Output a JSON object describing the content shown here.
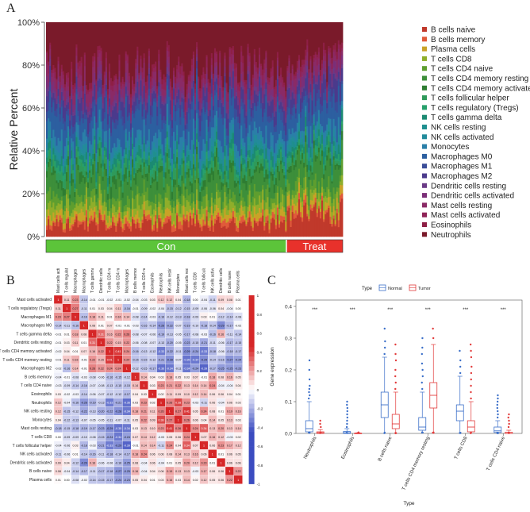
{
  "panels": {
    "a": {
      "label": "A"
    },
    "b": {
      "label": "B"
    },
    "c": {
      "label": "C"
    }
  },
  "chart_data": [
    {
      "id": "A",
      "type": "bar",
      "stacked": true,
      "ylabel": "Relative Percent",
      "yticks": [
        "0%",
        "20%",
        "40%",
        "60%",
        "80%",
        "100%"
      ],
      "groups": [
        {
          "name": "Con",
          "fraction": 0.81,
          "color": "#5cc43a"
        },
        {
          "name": "Treat",
          "fraction": 0.19,
          "color": "#e8312b"
        }
      ],
      "n_samples": 180,
      "legend_position": "right",
      "cell_types": [
        {
          "name": "B cells naive",
          "color": "#c0392b",
          "con": 6,
          "treat": 10
        },
        {
          "name": "B cells memory",
          "color": "#e05a3a",
          "con": 2,
          "treat": 2
        },
        {
          "name": "Plasma cells",
          "color": "#c9a227",
          "con": 3,
          "treat": 3
        },
        {
          "name": "T cells CD8",
          "color": "#8fae2a",
          "con": 4,
          "treat": 3
        },
        {
          "name": "T cells CD4 naive",
          "color": "#5e9e2f",
          "con": 4,
          "treat": 4
        },
        {
          "name": "T cells CD4 memory resting",
          "color": "#3d8f3a",
          "con": 8,
          "treat": 9
        },
        {
          "name": "T cells CD4 memory activated",
          "color": "#2e7d32",
          "con": 3,
          "treat": 2
        },
        {
          "name": "T cells follicular helper",
          "color": "#2f9a5a",
          "con": 3,
          "treat": 2
        },
        {
          "name": "T cells regulatory (Tregs)",
          "color": "#27a06b",
          "con": 2,
          "treat": 2
        },
        {
          "name": "T cells gamma delta",
          "color": "#1b8a72",
          "con": 3,
          "treat": 3
        },
        {
          "name": "NK cells resting",
          "color": "#1f8f8f",
          "con": 2,
          "treat": 2
        },
        {
          "name": "NK cells activated",
          "color": "#228b9b",
          "con": 3,
          "treat": 2
        },
        {
          "name": "Monocytes",
          "color": "#2a7fa8",
          "con": 4,
          "treat": 3
        },
        {
          "name": "Macrophages M0",
          "color": "#2c5fa0",
          "con": 10,
          "treat": 9
        },
        {
          "name": "Macrophages M1",
          "color": "#3a4d99",
          "con": 3,
          "treat": 3
        },
        {
          "name": "Macrophages M2",
          "color": "#4b3a8c",
          "con": 5,
          "treat": 6
        },
        {
          "name": "Dendritic cells resting",
          "color": "#6a3a86",
          "con": 2,
          "treat": 2
        },
        {
          "name": "Dendritic cells activated",
          "color": "#7b2f78",
          "con": 3,
          "treat": 3
        },
        {
          "name": "Mast cells resting",
          "color": "#8a2a66",
          "con": 4,
          "treat": 4
        },
        {
          "name": "Mast cells activated",
          "color": "#8f2357",
          "con": 3,
          "treat": 2
        },
        {
          "name": "Eosinophils",
          "color": "#8e1f45",
          "con": 2,
          "treat": 2
        },
        {
          "name": "Neutrophils",
          "color": "#7a1a2a",
          "con": 22,
          "treat": 18
        }
      ]
    },
    {
      "id": "B",
      "type": "heatmap",
      "title": "",
      "color_scale": {
        "min": -1,
        "mid": 0,
        "max": 1,
        "low_color": "#3b4cc0",
        "mid_color": "#ffffff",
        "high_color": "#d62728",
        "ticks": [
          "1",
          "0.8",
          "0.6",
          "0.4",
          "0.2",
          "0",
          "-0.2",
          "-0.4",
          "-0.6",
          "-0.8",
          "-1"
        ]
      },
      "rows": [
        "Mast cells activated",
        "T cells regulatory (Tregs)",
        "Macrophages M1",
        "Macrophages M0",
        "T cells gamma delta",
        "Dendritic cells resting",
        "T cells CD4 memory activated",
        "T cells CD4 memory resting",
        "Macrophages M2",
        "B cells memory",
        "T cells CD4 naive",
        "Eosinophils",
        "Neutrophils",
        "NK cells resting",
        "Monocytes",
        "Mast cells resting",
        "T cells CD8",
        "T cells follicular helper",
        "NK cells activated",
        "Dendritic cells activated",
        "B cells naive",
        "Plasma cells"
      ],
      "cols": [
        "Mast cells activated",
        "T cells regulatory (Tregs)",
        "Macrophages M1",
        "Macrophages M0",
        "T cells gamma delta",
        "Dendritic cells resting",
        "T cells CD4 memory activated",
        "T cells CD4 memory resting",
        "Macrophages M2",
        "B cells memory",
        "T cells CD4 naive",
        "Eosinophils",
        "Neutrophils",
        "NK cells resting",
        "Monocytes",
        "Mast cells resting",
        "T cells CD8",
        "T cells follicular helper",
        "NK cells activated",
        "Dendritic cells activated",
        "B cells naive",
        "Plasma cells"
      ],
      "values": [
        [
          1,
          0.11,
          0.23,
          -0.14,
          -0.01,
          -0.01,
          -0.02,
          -0.01,
          -0.02,
          -0.04,
          -0.03,
          0.03,
          0.12,
          0.12,
          0.04,
          -0.18,
          0,
          -0.04,
          -0.11,
          0.09,
          0.08,
          0.01
        ],
        [
          0.11,
          1,
          0.27,
          -0.11,
          0.01,
          0.03,
          0.04,
          0.11,
          -0.16,
          -0.01,
          -0.09,
          -0.02,
          -0.04,
          -0.15,
          -0.12,
          -0.15,
          -0.09,
          -0.06,
          -0.06,
          0.04,
          -0.04,
          0
        ],
        [
          0.23,
          0.27,
          1,
          -0.16,
          0.18,
          0.11,
          0.01,
          0.16,
          0.14,
          -0.08,
          -0.14,
          -0.03,
          -0.16,
          -0.12,
          -0.13,
          -0.18,
          -0.09,
          0.03,
          0.01,
          -0.12,
          -0.14,
          -0.08
        ],
        [
          -0.14,
          -0.11,
          -0.16,
          1,
          0.08,
          0.01,
          0.07,
          -0.01,
          -0.01,
          -0.03,
          -0.16,
          -0.14,
          -0.26,
          -0.22,
          -0.07,
          -0.19,
          -0.1,
          -0.18,
          -0.14,
          -0.29,
          -0.17,
          -0.02
        ],
        [
          -0.01,
          0.01,
          0.18,
          0.08,
          1,
          0.31,
          0.16,
          0.22,
          0.26,
          -0.08,
          -0.07,
          -0.06,
          -0.19,
          -0.13,
          -0.05,
          -0.17,
          -0.08,
          -0.03,
          -0.16,
          0.16,
          -0.11,
          -0.14
        ],
        [
          -0.01,
          0.03,
          0.11,
          0.01,
          0.31,
          1,
          0.22,
          0.15,
          0.22,
          -0.06,
          -0.08,
          -0.07,
          -0.13,
          -0.2,
          -0.05,
          -0.23,
          -0.15,
          -0.21,
          -0.11,
          -0.06,
          -0.17,
          -0.15
        ],
        [
          -0.02,
          0.04,
          0.01,
          0.07,
          0.16,
          0.22,
          1,
          0.41,
          0.24,
          -0.16,
          -0.13,
          -0.12,
          -0.33,
          -0.22,
          -0.11,
          -0.29,
          -0.24,
          -0.33,
          -0.18,
          -0.06,
          -0.18,
          -0.17
        ],
        [
          -0.01,
          0.11,
          0.16,
          -0.01,
          0.22,
          0.15,
          0.41,
          1,
          0.24,
          -0.15,
          -0.15,
          -0.12,
          -0.21,
          -0.28,
          -0.07,
          -0.35,
          -0.34,
          -0.29,
          -0.14,
          -0.16,
          -0.27,
          -0.24
        ],
        [
          -0.02,
          -0.16,
          0.14,
          -0.01,
          0.26,
          0.22,
          0.24,
          0.24,
          1,
          -0.12,
          -0.15,
          -0.17,
          -0.36,
          -0.34,
          -0.11,
          -0.34,
          -0.24,
          -0.39,
          -0.17,
          -0.25,
          -0.25,
          -0.23
        ],
        [
          -0.04,
          -0.01,
          -0.08,
          -0.03,
          -0.08,
          -0.06,
          -0.16,
          -0.15,
          -0.12,
          1,
          0.14,
          0.04,
          0.03,
          0.18,
          0.05,
          0.03,
          0.07,
          -0.01,
          0.18,
          0.08,
          0.16,
          0.05
        ],
        [
          -0.03,
          -0.09,
          -0.14,
          -0.16,
          -0.07,
          -0.08,
          -0.13,
          -0.15,
          -0.15,
          0.14,
          1,
          0.03,
          0.23,
          0.21,
          0.22,
          0.13,
          0.14,
          0.14,
          0.24,
          -0.04,
          -0.04,
          0.04
        ],
        [
          0.03,
          -0.02,
          -0.03,
          -0.14,
          -0.06,
          -0.07,
          -0.12,
          -0.12,
          -0.17,
          0.04,
          0.03,
          1,
          0.02,
          0.11,
          0.09,
          0.1,
          0.12,
          0.14,
          0.06,
          0.06,
          0.04,
          0.01
        ],
        [
          0.12,
          -0.04,
          -0.16,
          -0.26,
          -0.19,
          -0.13,
          -0.33,
          -0.21,
          -0.36,
          0.03,
          0.23,
          0.02,
          1,
          0.26,
          0.38,
          0.23,
          -0.03,
          -0.11,
          0.06,
          -0.04,
          0.06,
          0.03
        ],
        [
          0.12,
          -0.15,
          -0.12,
          -0.22,
          -0.13,
          -0.2,
          -0.22,
          -0.28,
          -0.34,
          0.18,
          0.21,
          0.11,
          0.26,
          1,
          0.27,
          0.41,
          0.05,
          0.24,
          0.08,
          0.01,
          0.19,
          0.16
        ],
        [
          0.04,
          -0.12,
          -0.13,
          -0.07,
          -0.05,
          -0.05,
          -0.11,
          -0.07,
          -0.11,
          0.05,
          0.22,
          0.09,
          0.38,
          0.27,
          1,
          0.26,
          0.06,
          0.04,
          0.14,
          0.05,
          0.13,
          0.03
        ],
        [
          -0.18,
          -0.15,
          -0.18,
          -0.19,
          -0.17,
          -0.23,
          -0.29,
          -0.35,
          -0.34,
          0.03,
          0.13,
          0.1,
          0.23,
          0.41,
          0.26,
          1,
          0.24,
          0.34,
          0.13,
          0.2,
          0.13,
          0.14
        ],
        [
          0,
          -0.09,
          -0.09,
          -0.1,
          -0.08,
          -0.15,
          -0.24,
          -0.34,
          -0.24,
          0.07,
          0.14,
          0.12,
          -0.03,
          0.05,
          0.06,
          0.24,
          1,
          0.07,
          0.16,
          0.12,
          -0.03,
          0.02
        ],
        [
          -0.04,
          -0.06,
          0.03,
          -0.18,
          -0.03,
          -0.21,
          -0.33,
          -0.29,
          -0.39,
          -0.01,
          0.14,
          0.14,
          -0.11,
          0.24,
          0.04,
          0.34,
          0.07,
          1,
          0.06,
          0.23,
          0.17,
          0.12
        ],
        [
          -0.11,
          -0.06,
          0.01,
          -0.14,
          -0.16,
          -0.11,
          -0.18,
          -0.14,
          -0.17,
          0.18,
          0.24,
          0.06,
          0.06,
          0.08,
          0.14,
          0.13,
          0.16,
          0.06,
          1,
          0.01,
          0.06,
          0.05
        ],
        [
          0.09,
          0.04,
          -0.12,
          -0.29,
          0.16,
          -0.06,
          -0.06,
          -0.16,
          -0.25,
          0.08,
          -0.04,
          0.06,
          -0.04,
          0.01,
          0.05,
          0.2,
          0.12,
          0.23,
          0.01,
          1,
          0.06,
          0.06
        ],
        [
          0.08,
          -0.04,
          -0.14,
          -0.17,
          -0.11,
          -0.17,
          -0.18,
          -0.27,
          -0.25,
          0.16,
          -0.04,
          0.04,
          0.06,
          0.19,
          0.13,
          0.13,
          -0.03,
          0.17,
          0.06,
          0.06,
          1,
          0.22
        ],
        [
          0.01,
          0,
          -0.08,
          -0.02,
          -0.14,
          -0.15,
          -0.17,
          -0.24,
          -0.23,
          0.05,
          0.04,
          0.01,
          0.03,
          0.16,
          0.03,
          0.14,
          0.02,
          0.12,
          0.05,
          0.06,
          0.22,
          1
        ]
      ]
    },
    {
      "id": "C",
      "type": "boxplot",
      "ylabel": "Gene expression",
      "xlabel": "Type",
      "ylim": [
        0,
        0.42
      ],
      "yticks": [
        0,
        0.1,
        0.2,
        0.3,
        0.4
      ],
      "legend": {
        "title": "Type",
        "position": "top",
        "entries": [
          {
            "name": "Normal",
            "color": "#3b6fc9"
          },
          {
            "name": "Tumor",
            "color": "#e23b3b"
          }
        ]
      },
      "significance": "***",
      "categories": [
        {
          "name": "Neutrophils",
          "normal": {
            "whislo": 0,
            "q1": 0.005,
            "med": 0.015,
            "q3": 0.04,
            "whishi": 0.1,
            "outliers": [
              0.11,
              0.12,
              0.13,
              0.14,
              0.15,
              0.17,
              0.2,
              0.23
            ]
          },
          "tumor": {
            "whislo": 0,
            "q1": 0.0,
            "med": 0.002,
            "q3": 0.005,
            "whishi": 0.012,
            "outliers": [
              0.02,
              0.03,
              0.04
            ]
          }
        },
        {
          "name": "Eosinophils",
          "normal": {
            "whislo": 0,
            "q1": 0.0,
            "med": 0.002,
            "q3": 0.006,
            "whishi": 0.015,
            "outliers": [
              0.02,
              0.03,
              0.04,
              0.05,
              0.06,
              0.07,
              0.08,
              0.09,
              0.1
            ]
          },
          "tumor": {
            "whislo": 0,
            "q1": 0.0,
            "med": 0.0,
            "q3": 0.001,
            "whishi": 0.002,
            "outliers": []
          }
        },
        {
          "name": "B cells naive",
          "normal": {
            "whislo": 0,
            "q1": 0.05,
            "med": 0.09,
            "q3": 0.13,
            "whishi": 0.24,
            "outliers": [
              0.25,
              0.27,
              0.29,
              0.33
            ]
          },
          "tumor": {
            "whislo": 0,
            "q1": 0.015,
            "med": 0.03,
            "q3": 0.06,
            "whishi": 0.13,
            "outliers": [
              0.14,
              0.16,
              0.18,
              0.2,
              0.23,
              0.25,
              0.28
            ]
          }
        },
        {
          "name": "T cells CD4 memory resting",
          "normal": {
            "whislo": 0,
            "q1": 0.01,
            "med": 0.02,
            "q3": 0.05,
            "whishi": 0.13,
            "outliers": [
              0.14,
              0.16,
              0.18,
              0.2,
              0.22,
              0.25,
              0.27,
              0.3
            ]
          },
          "tumor": {
            "whislo": 0,
            "q1": 0.08,
            "med": 0.12,
            "q3": 0.16,
            "whishi": 0.28,
            "outliers": [
              0.3,
              0.33
            ]
          }
        },
        {
          "name": "T cells CD8",
          "normal": {
            "whislo": 0,
            "q1": 0.04,
            "med": 0.07,
            "q3": 0.09,
            "whishi": 0.18,
            "outliers": [
              0.19,
              0.21,
              0.23,
              0.26
            ]
          },
          "tumor": {
            "whislo": 0,
            "q1": 0.005,
            "med": 0.02,
            "q3": 0.04,
            "whishi": 0.1,
            "outliers": [
              0.11,
              0.13,
              0.15,
              0.17,
              0.19,
              0.21,
              0.24,
              0.26,
              0.28
            ]
          }
        },
        {
          "name": "T cells CD4 naive",
          "normal": {
            "whislo": 0,
            "q1": 0.003,
            "med": 0.008,
            "q3": 0.02,
            "whishi": 0.04,
            "outliers": [
              0.05,
              0.06,
              0.07,
              0.08,
              0.09,
              0.1,
              0.11,
              0.12
            ]
          },
          "tumor": {
            "whislo": 0,
            "q1": 0.0,
            "med": 0.0,
            "q3": 0.004,
            "whishi": 0.01,
            "outliers": [
              0.02,
              0.03,
              0.04,
              0.05,
              0.06
            ]
          }
        }
      ]
    }
  ]
}
